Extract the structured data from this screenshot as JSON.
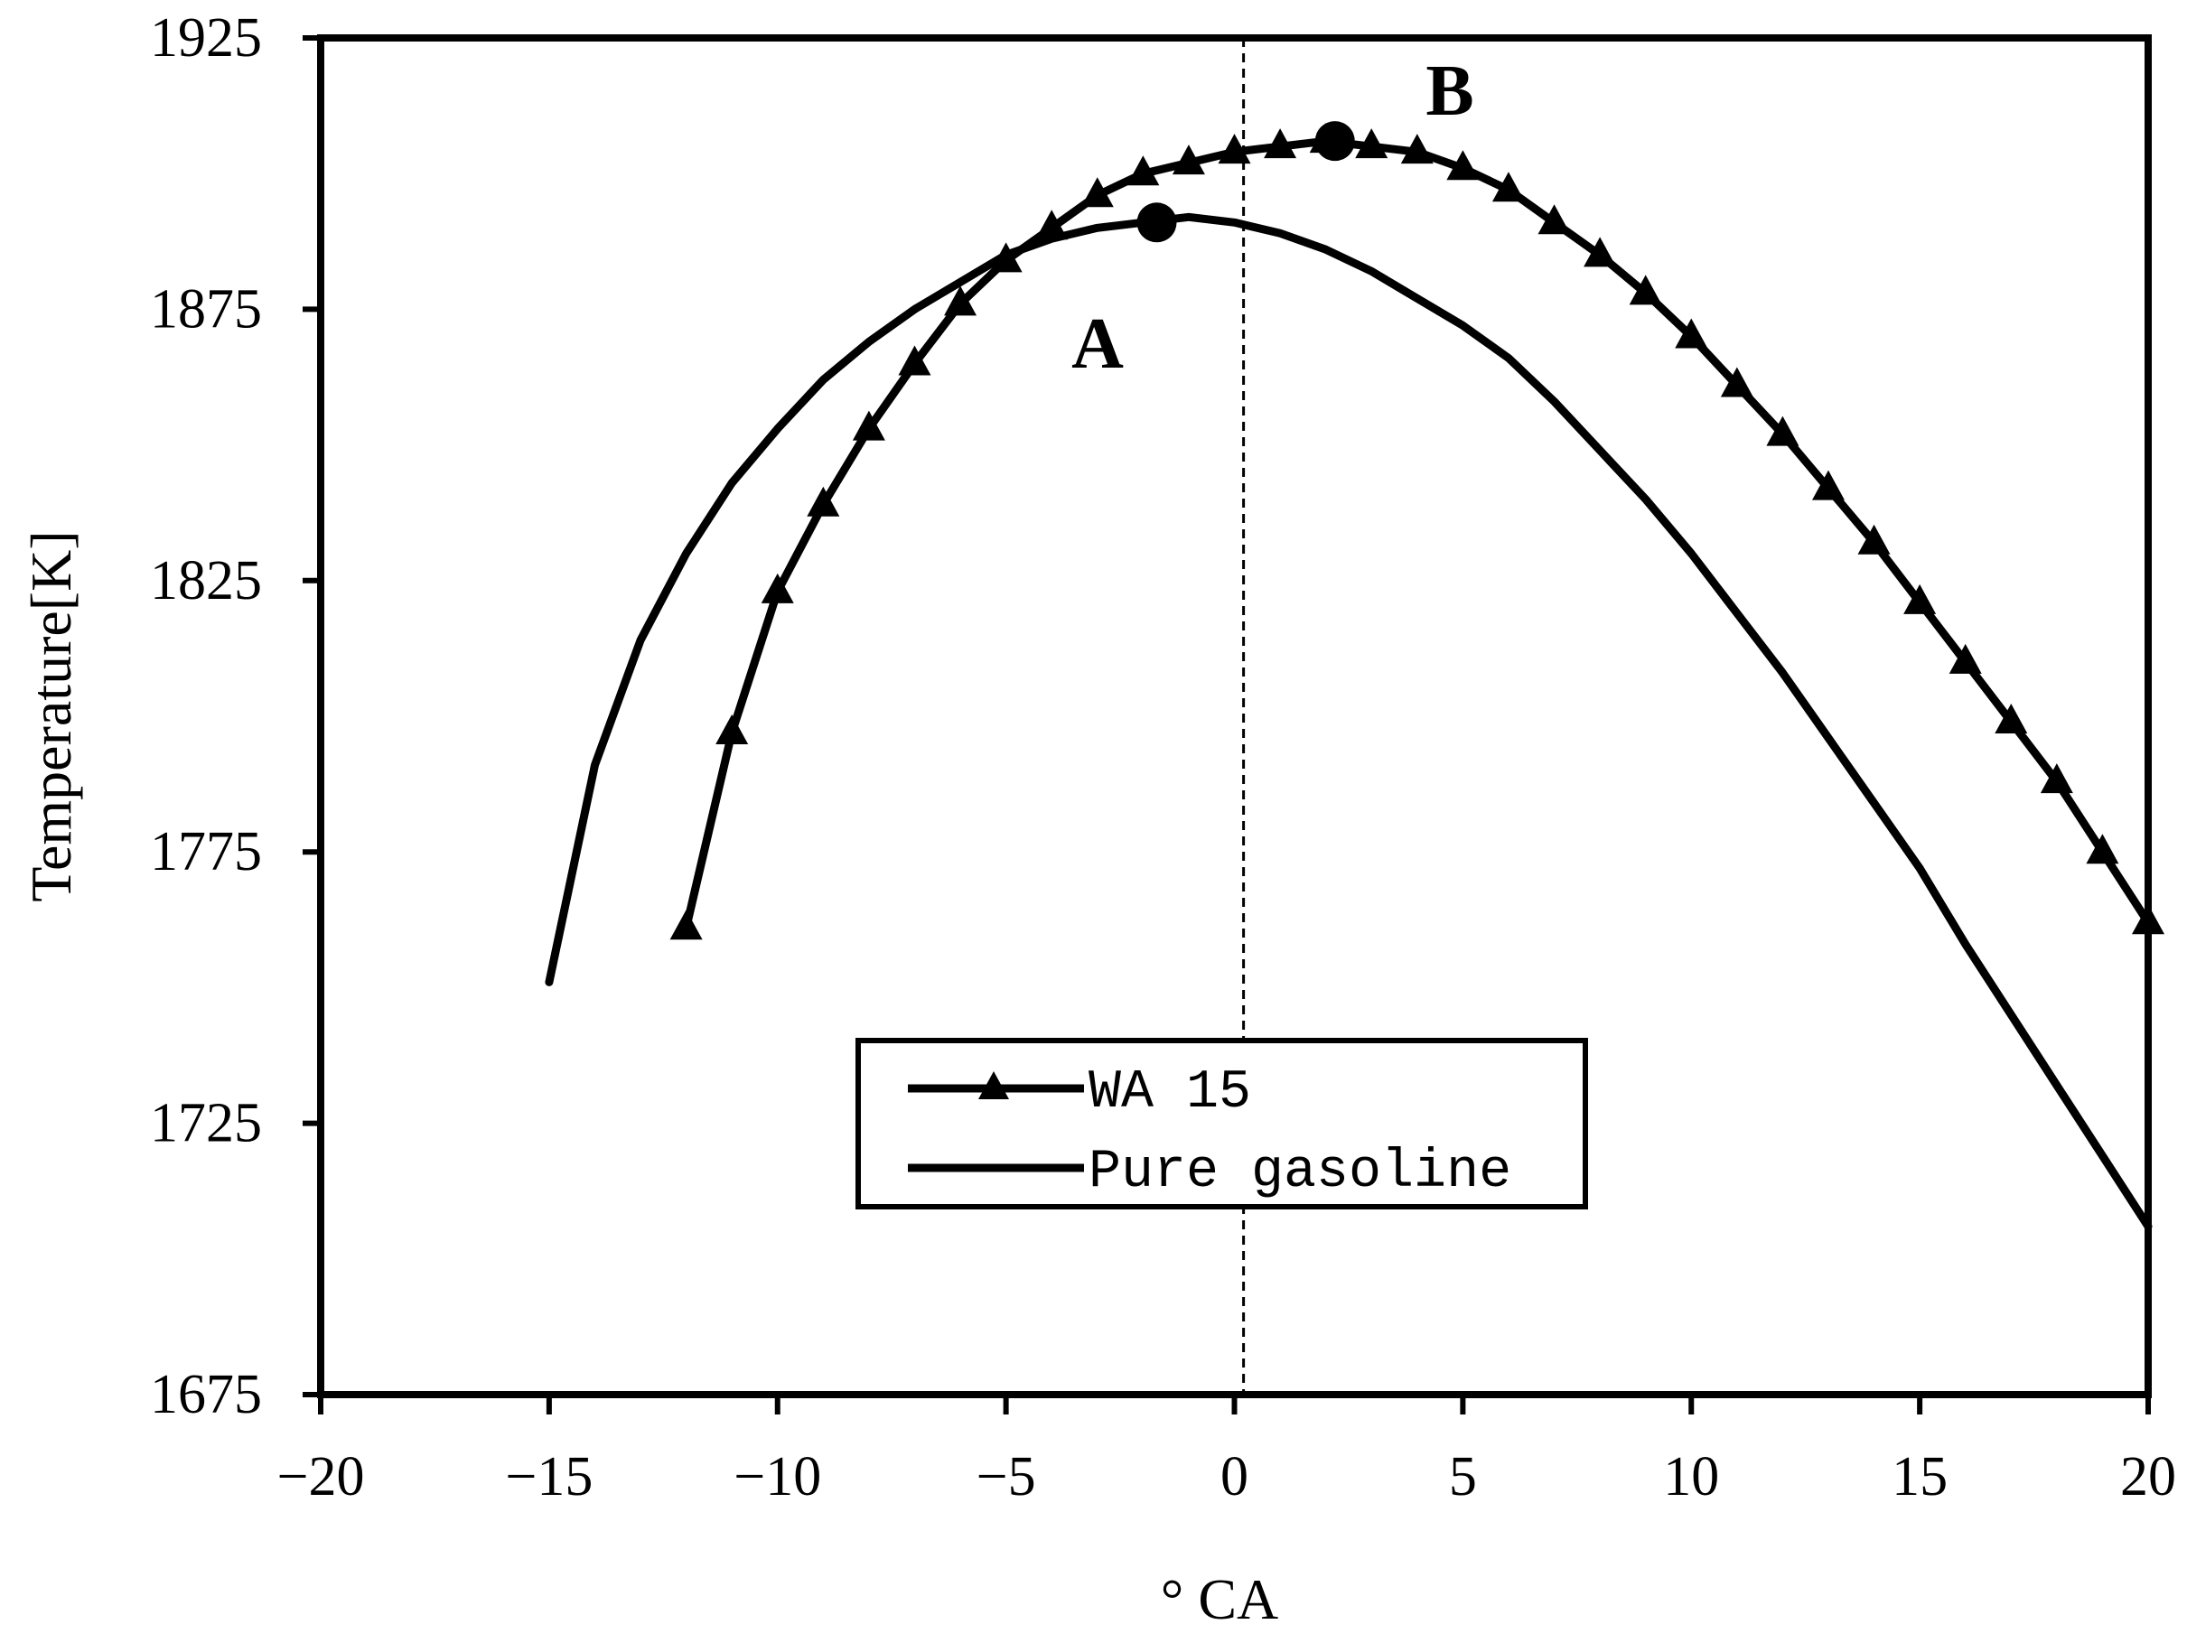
{
  "chart_data": {
    "type": "line",
    "xlabel": "° CA",
    "ylabel": "Temperature[K]",
    "xlim": [
      -20,
      20
    ],
    "ylim": [
      1675,
      1925
    ],
    "xticks": [
      "−20",
      "−15",
      "−10",
      "−5",
      "0",
      "5",
      "10",
      "15",
      "20"
    ],
    "yticks": [
      "1925",
      "1875",
      "1825",
      "1775",
      "1725",
      "1675"
    ],
    "grid": false,
    "legend_position": "bottom-center",
    "reference_line": {
      "x": 0.2,
      "style": "dashed"
    },
    "series": [
      {
        "name": "WA 15",
        "marker": "triangle",
        "x": [
          -12,
          -11,
          -10,
          -9,
          -8,
          -7,
          -6,
          -5,
          -4,
          -3,
          -2,
          -1,
          0,
          1,
          2,
          3,
          4,
          5,
          6,
          7,
          8,
          9,
          10,
          11,
          12,
          13,
          14,
          15,
          16,
          17,
          18,
          19,
          20
        ],
        "y": [
          1761,
          1797,
          1823,
          1839,
          1853,
          1865,
          1876,
          1884,
          1890,
          1896,
          1900,
          1902,
          1904,
          1905,
          1906,
          1905,
          1904,
          1901,
          1897,
          1891,
          1885,
          1878,
          1870,
          1861,
          1852,
          1842,
          1832,
          1821,
          1810,
          1799,
          1788,
          1775,
          1762
        ]
      },
      {
        "name": "Pure gasoline",
        "marker": "none",
        "x": [
          -15,
          -14,
          -13,
          -12,
          -11,
          -10,
          -9,
          -8,
          -7,
          -6,
          -5,
          -4,
          -3,
          -2,
          -1,
          0,
          1,
          2,
          3,
          4,
          5,
          6,
          7,
          8,
          9,
          10,
          11,
          12,
          13,
          14,
          15,
          16,
          17,
          18,
          19,
          20
        ],
        "y": [
          1751,
          1791,
          1814,
          1830,
          1843,
          1853,
          1862,
          1869,
          1875,
          1880,
          1885,
          1888,
          1890,
          1891,
          1892,
          1891,
          1889,
          1886,
          1882,
          1877,
          1872,
          1866,
          1858,
          1849,
          1840,
          1830,
          1819,
          1808,
          1796,
          1784,
          1772,
          1758,
          1745,
          1732,
          1719,
          1706
        ]
      }
    ],
    "points": [
      {
        "label": "A",
        "x": -1.7,
        "y": 1891
      },
      {
        "label": "B",
        "x": 2.2,
        "y": 1906
      }
    ]
  }
}
